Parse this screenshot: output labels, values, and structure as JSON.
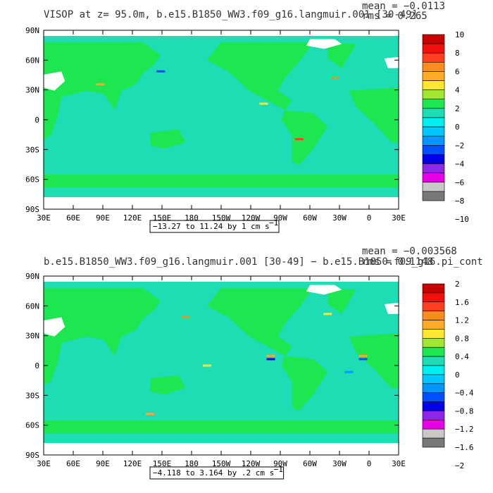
{
  "chart_data": [
    {
      "type": "heatmap",
      "title": "VISOP at z=  95.0m, b.e15.B1850_WW3.f09_g16.langmuir.001 [30-49]",
      "stats_mean": "mean = −0.0113",
      "stats_rms": "rms = 0.265",
      "range_label": "−13.27 to 11.24 by 1 cm s",
      "range_sup": "−1",
      "x_ticks": [
        "30E",
        "60E",
        "90E",
        "120E",
        "150E",
        "180",
        "150W",
        "120W",
        "90W",
        "60W",
        "30W",
        "0",
        "30E"
      ],
      "y_ticks": [
        "90N",
        "60N",
        "30N",
        "0",
        "30S",
        "60S",
        "90S"
      ],
      "colorbar": {
        "labels": [
          "10",
          "8",
          "6",
          "4",
          "2",
          "0",
          "−2",
          "−4",
          "−6",
          "−8",
          "−10"
        ],
        "colors": [
          "#c80000",
          "#f01010",
          "#ff4020",
          "#ff8c1e",
          "#ffaa28",
          "#ffe632",
          "#a0e632",
          "#1ee650",
          "#1edcb4",
          "#00f0f0",
          "#00c8ff",
          "#0096ff",
          "#0050ff",
          "#0000e6",
          "#8c28e6",
          "#e600e6",
          "#c8c8c8",
          "#787878"
        ]
      },
      "field": "ocean mostly cyan (0 to −2), land and polar regions green (0 to 2)",
      "grid": false
    },
    {
      "type": "heatmap",
      "title": "b.e15.B1850_WW3.f09_g16.langmuir.001 [30-49] − b.e15.B1850.f09_g16.pi_cont",
      "stats_mean": "mean = −0.003568",
      "stats_rms": "rms = 0.1148",
      "range_label": "−4.118 to 3.164 by .2 cm s",
      "range_sup": "−1",
      "x_ticks": [
        "30E",
        "60E",
        "90E",
        "120E",
        "150E",
        "180",
        "150W",
        "120W",
        "90W",
        "60W",
        "30W",
        "0",
        "30E"
      ],
      "y_ticks": [
        "90N",
        "60N",
        "30N",
        "0",
        "30S",
        "60S",
        "90S"
      ],
      "colorbar": {
        "labels": [
          "2",
          "1.6",
          "1.2",
          "0.8",
          "0.4",
          "0",
          "−0.4",
          "−0.8",
          "−1.2",
          "−1.6",
          "−2"
        ],
        "colors": [
          "#c80000",
          "#f01010",
          "#ff4020",
          "#ff8c1e",
          "#ffaa28",
          "#ffe632",
          "#a0e632",
          "#1ee650",
          "#1edcb4",
          "#00f0f0",
          "#00c8ff",
          "#0096ff",
          "#0050ff",
          "#0000e6",
          "#8c28e6",
          "#e600e6",
          "#c8c8c8",
          "#787878"
        ]
      },
      "field": "ocean mostly cyan (0 to −0.4), land and polar regions green (0 to 0.4), equatorial Pacific/Atlantic anomalies",
      "grid": false
    }
  ],
  "colors": {
    "land_green": "#1ee650",
    "ocean_cyan": "#1edcb4",
    "ice_white": "#ffffff"
  }
}
